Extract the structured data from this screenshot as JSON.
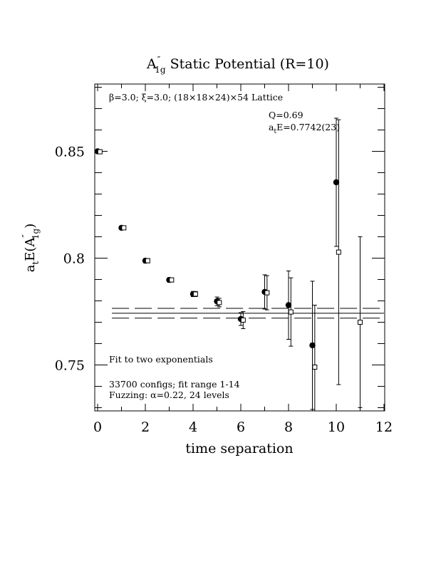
{
  "chart_data": {
    "type": "scatter",
    "title": {
      "base": "A",
      "prime": "″",
      "sub": "1g",
      "rest": " Static Potential (R=10)"
    },
    "xlabel": "time separation",
    "ylabel": {
      "a": "a",
      "t": "t",
      "E": "E(A",
      "prime": "″",
      "sub": "1g",
      "close": ")"
    },
    "xlim": [
      0,
      12
    ],
    "ylim": [
      0.7285,
      0.8815
    ],
    "x_ticks": [
      0,
      2,
      4,
      6,
      8,
      10,
      12
    ],
    "x_tick_labels": [
      "0",
      "2",
      "4",
      "6",
      "8",
      "10",
      "12"
    ],
    "y_ticks": [
      0.75,
      0.8,
      0.85
    ],
    "y_tick_labels": [
      "0.75",
      "0.8",
      "0.85"
    ],
    "annotations": {
      "lattice": "β=3.0; ξ=3.0; (18×18×24)×54 Lattice",
      "q": "Q=0.69",
      "fit_value": {
        "a": "a",
        "t": "t",
        "rest": "E=0.7742(23)"
      },
      "fit_method": "Fit to two exponentials",
      "configs": "33700 configs; fit range 1-14",
      "fuzzing": "Fuzzing: α=0.22, 24 levels"
    },
    "fit": {
      "value": 0.7742,
      "error": 0.0023,
      "t_start": 0.6,
      "t_end": 12
    },
    "series": [
      {
        "marker": "filled-circle",
        "points": [
          {
            "x": 0,
            "y": 0.85,
            "err": 0.0006
          },
          {
            "x": 1,
            "y": 0.8142,
            "err": 0.0008
          },
          {
            "x": 2,
            "y": 0.7988,
            "err": 0.001
          },
          {
            "x": 3,
            "y": 0.7898,
            "err": 0.001
          },
          {
            "x": 4,
            "y": 0.7832,
            "err": 0.0012
          },
          {
            "x": 5,
            "y": 0.7798,
            "err": 0.002
          },
          {
            "x": 6,
            "y": 0.7715,
            "err": 0.003
          },
          {
            "x": 7,
            "y": 0.7842,
            "err": 0.008
          },
          {
            "x": 8,
            "y": 0.778,
            "err": 0.016
          },
          {
            "x": 9,
            "y": 0.7592,
            "err": 0.03
          },
          {
            "x": 10,
            "y": 0.8355,
            "err": 0.03
          }
        ]
      },
      {
        "marker": "open-square",
        "points": [
          {
            "x": 0.1,
            "y": 0.8498,
            "err": 0.0006
          },
          {
            "x": 1.1,
            "y": 0.8142,
            "err": 0.0008
          },
          {
            "x": 2.1,
            "y": 0.7988,
            "err": 0.001
          },
          {
            "x": 3.1,
            "y": 0.7898,
            "err": 0.001
          },
          {
            "x": 4.1,
            "y": 0.7832,
            "err": 0.0012
          },
          {
            "x": 5.1,
            "y": 0.7792,
            "err": 0.002
          },
          {
            "x": 6.1,
            "y": 0.771,
            "err": 0.004
          },
          {
            "x": 7.1,
            "y": 0.7838,
            "err": 0.008
          },
          {
            "x": 8.1,
            "y": 0.7748,
            "err": 0.016
          },
          {
            "x": 9.1,
            "y": 0.749,
            "err": 0.029
          },
          {
            "x": 10.1,
            "y": 0.8028,
            "err": 0.062
          },
          {
            "x": 11.0,
            "y": 0.77,
            "err": 0.04
          }
        ]
      }
    ],
    "grid": false,
    "legend": "none"
  }
}
